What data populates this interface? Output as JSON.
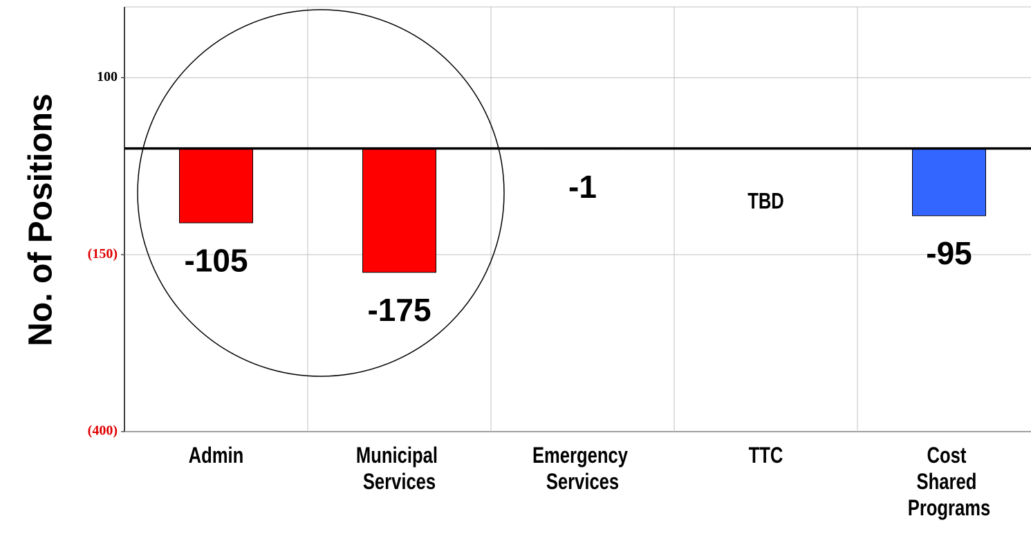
{
  "chart_data": {
    "type": "bar",
    "y_label": "No. of Positions",
    "categories": [
      "Admin",
      "Municipal Services",
      "Emergency Services",
      "TTC",
      "Cost Shared Programs"
    ],
    "values": [
      -105,
      -175,
      -1,
      null,
      -95
    ],
    "value_labels": [
      "-105",
      "-175",
      "-1",
      "TBD",
      "-95"
    ],
    "colors": [
      "#ff0000",
      "#ff0000",
      "#3366ff",
      "#3366ff",
      "#3366ff"
    ],
    "ylim": [
      -400,
      200
    ],
    "yticks": [
      100,
      {
        "value": -150,
        "label": "(150)"
      },
      {
        "value": -400,
        "label": "(400)"
      }
    ],
    "grid": true
  }
}
